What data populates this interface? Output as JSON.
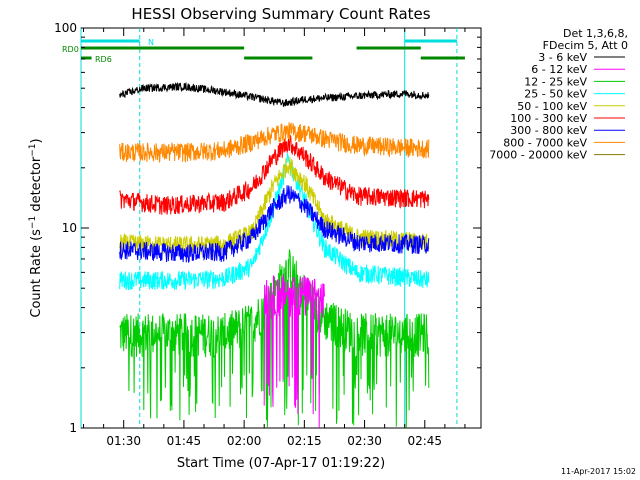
{
  "chart_data": {
    "type": "line",
    "title": "HESSI Observing Summary Count Rates",
    "xlabel": "Start Time (07-Apr-17 01:19:22)",
    "ylabel": "Count Rate (s⁻¹ detector⁻¹)",
    "ylabel_parts": {
      "main": "Count Rate (s",
      "exp1": "−1",
      "mid": " detector",
      "exp2": "−1",
      "end": ")"
    },
    "y_scale": "log",
    "ylim": [
      1,
      100
    ],
    "y_ticks": [
      "1",
      "10",
      "100"
    ],
    "xlim": [
      "01:19:22",
      "02:59:00"
    ],
    "x_ticks": [
      "01:30",
      "01:45",
      "02:00",
      "02:15",
      "02:30",
      "02:45"
    ],
    "grid": false,
    "legend_placement": "right",
    "legend_header": [
      "Det 1,3,6,8,",
      "FDecim 5, Att 0"
    ],
    "series": [
      {
        "name": "3 - 6 keV",
        "color": "#000000",
        "points": [
          [
            "01:29:00",
            46
          ],
          [
            "01:35:00",
            50
          ],
          [
            "01:45:00",
            51
          ],
          [
            "01:55:00",
            48
          ],
          [
            "02:05:00",
            44
          ],
          [
            "02:10:00",
            42
          ],
          [
            "02:15:00",
            44
          ],
          [
            "02:30:00",
            46
          ],
          [
            "02:40:00",
            47
          ],
          [
            "02:46:00",
            46
          ]
        ]
      },
      {
        "name": "6 - 12 keV",
        "color": "#ff00ff",
        "points": [
          [
            "02:05:00",
            4.4
          ],
          [
            "02:08:00",
            4.7
          ],
          [
            "02:12:00",
            4.8
          ],
          [
            "02:16:00",
            4.6
          ],
          [
            "02:20:00",
            4.3
          ]
        ]
      },
      {
        "name": "12 - 25 keV",
        "color": "#00cc00",
        "points": [
          [
            "01:29:00",
            3.0
          ],
          [
            "01:45:00",
            3.0
          ],
          [
            "01:55:00",
            3.0
          ],
          [
            "02:02:00",
            3.4
          ],
          [
            "02:07:00",
            4.5
          ],
          [
            "02:11:00",
            6.5
          ],
          [
            "02:15:00",
            4.8
          ],
          [
            "02:20:00",
            3.6
          ],
          [
            "02:28:00",
            3.0
          ],
          [
            "02:46:00",
            3.0
          ]
        ]
      },
      {
        "name": "25 - 50 keV",
        "color": "#00ffff",
        "points": [
          [
            "01:29:00",
            5.5
          ],
          [
            "01:45:00",
            5.5
          ],
          [
            "01:55:00",
            5.6
          ],
          [
            "02:02:00",
            6.5
          ],
          [
            "02:07:00",
            12
          ],
          [
            "02:11:00",
            22
          ],
          [
            "02:15:00",
            14
          ],
          [
            "02:20:00",
            8
          ],
          [
            "02:28:00",
            6
          ],
          [
            "02:46:00",
            5.5
          ]
        ]
      },
      {
        "name": "50 - 100 keV",
        "color": "#cccc00",
        "points": [
          [
            "01:29:00",
            8.4
          ],
          [
            "01:45:00",
            8.2
          ],
          [
            "01:55:00",
            8.3
          ],
          [
            "02:02:00",
            9.5
          ],
          [
            "02:07:00",
            16
          ],
          [
            "02:11:00",
            21
          ],
          [
            "02:15:00",
            17
          ],
          [
            "02:20:00",
            11
          ],
          [
            "02:28:00",
            9
          ],
          [
            "02:46:00",
            8.5
          ]
        ]
      },
      {
        "name": "100 - 300 keV",
        "color": "#ff0000",
        "points": [
          [
            "01:29:00",
            14
          ],
          [
            "01:40:00",
            13
          ],
          [
            "01:55:00",
            13.5
          ],
          [
            "02:02:00",
            16
          ],
          [
            "02:07:00",
            22
          ],
          [
            "02:11:00",
            27
          ],
          [
            "02:15:00",
            23
          ],
          [
            "02:20:00",
            18
          ],
          [
            "02:28:00",
            14.5
          ],
          [
            "02:46:00",
            14
          ]
        ]
      },
      {
        "name": "300 - 800 keV",
        "color": "#0000ff",
        "points": [
          [
            "01:29:00",
            7.8
          ],
          [
            "01:45:00",
            7.5
          ],
          [
            "01:55:00",
            7.6
          ],
          [
            "02:02:00",
            9
          ],
          [
            "02:07:00",
            12.5
          ],
          [
            "02:11:00",
            15
          ],
          [
            "02:15:00",
            13
          ],
          [
            "02:20:00",
            10
          ],
          [
            "02:28:00",
            8.5
          ],
          [
            "02:46:00",
            8.3
          ]
        ]
      },
      {
        "name": "800 - 7000 keV",
        "color": "#ff8800",
        "points": [
          [
            "01:29:00",
            24
          ],
          [
            "01:45:00",
            24
          ],
          [
            "01:55:00",
            24.5
          ],
          [
            "02:02:00",
            27
          ],
          [
            "02:07:00",
            29.5
          ],
          [
            "02:11:00",
            30.5
          ],
          [
            "02:15:00",
            30
          ],
          [
            "02:20:00",
            28
          ],
          [
            "02:28:00",
            26
          ],
          [
            "02:46:00",
            25
          ]
        ]
      },
      {
        "name": "7000 - 20000 keV",
        "color": "#887700",
        "points": []
      }
    ],
    "status_bars": [
      {
        "label": "N",
        "color": "#00dddd",
        "level": 1,
        "segments": [
          [
            "01:19:22",
            "01:34:00"
          ],
          [
            "02:40:00",
            "02:53:00"
          ]
        ]
      },
      {
        "label": "RD0",
        "color": "#008800",
        "level": 2,
        "segments": [
          [
            "01:19:22",
            "02:00:00"
          ],
          [
            "02:28:00",
            "02:44:00"
          ]
        ]
      },
      {
        "label": "RD6",
        "color": "#008800",
        "level": 3,
        "segments": [
          [
            "01:19:22",
            "01:22:00"
          ],
          [
            "02:00:00",
            "02:17:00"
          ],
          [
            "02:44:00",
            "02:55:00"
          ]
        ]
      }
    ],
    "vlines": [
      {
        "time": "01:19:22",
        "style": "solid"
      },
      {
        "time": "01:34:00",
        "style": "dashed"
      },
      {
        "time": "02:40:00",
        "style": "solid"
      },
      {
        "time": "02:53:00",
        "style": "dashed"
      }
    ],
    "data_start": "01:29:00",
    "data_end": "02:46:00",
    "timestamp": "11-Apr-2017 15:02"
  }
}
